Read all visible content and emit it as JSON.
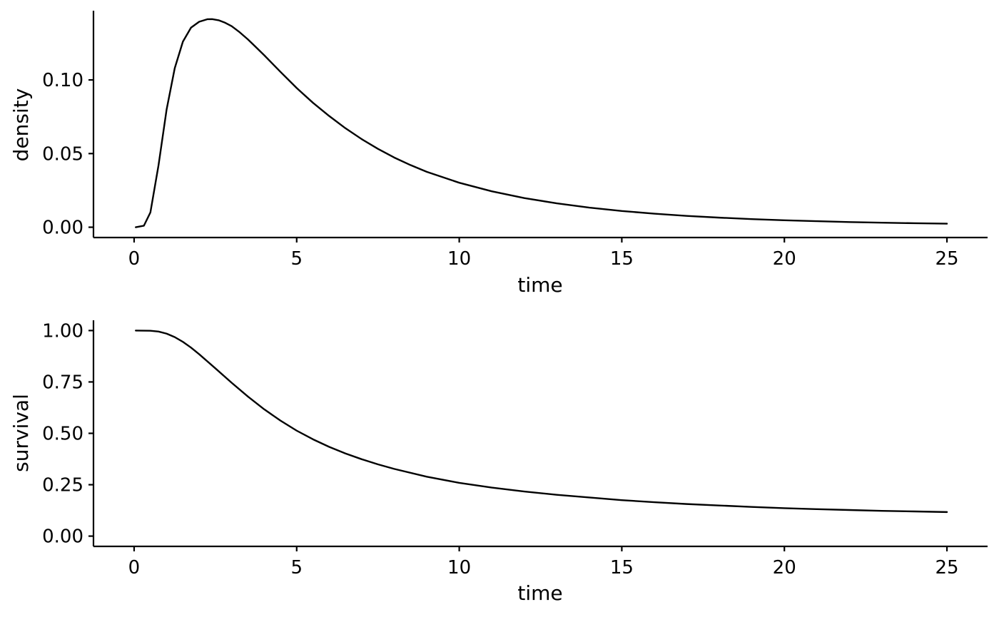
{
  "chart_data": [
    {
      "type": "line",
      "xlabel": "time",
      "ylabel": "density",
      "xticks": [
        0,
        5,
        10,
        15,
        20,
        25
      ],
      "yticks": [
        0.0,
        0.05,
        0.1
      ],
      "ytick_labels": [
        "0.00",
        "0.05",
        "0.10"
      ],
      "xlim": [
        -1.25,
        26.25
      ],
      "ylim": [
        -0.007,
        0.147
      ],
      "line_color": "#000000",
      "series": [
        {
          "x": [
            0.05,
            0.3,
            0.5,
            0.75,
            1.0,
            1.25,
            1.5,
            1.75,
            2.0,
            2.25,
            2.4,
            2.6,
            2.8,
            3.0,
            3.25,
            3.5,
            3.75,
            4.0,
            4.5,
            5.0,
            5.5,
            6.0,
            6.5,
            7.0,
            7.5,
            8.0,
            8.5,
            9.0,
            10.0,
            11.0,
            12.0,
            13.0,
            14.0,
            15.0,
            16.0,
            17.0,
            18.0,
            19.0,
            20.0,
            21.0,
            22.0,
            23.0,
            24.0,
            25.0
          ],
          "y": [
            0.0,
            0.001,
            0.01,
            0.042,
            0.08,
            0.108,
            0.126,
            0.1355,
            0.1395,
            0.1412,
            0.1413,
            0.1405,
            0.1388,
            0.1365,
            0.1323,
            0.1275,
            0.1222,
            0.1168,
            0.1055,
            0.0945,
            0.0845,
            0.0755,
            0.0672,
            0.0598,
            0.0532,
            0.0473,
            0.0422,
            0.0376,
            0.0302,
            0.0244,
            0.0198,
            0.0162,
            0.0133,
            0.011,
            0.0092,
            0.0077,
            0.0065,
            0.0055,
            0.0047,
            0.0041,
            0.0035,
            0.0031,
            0.0027,
            0.0024
          ]
        }
      ]
    },
    {
      "type": "line",
      "xlabel": "time",
      "ylabel": "survival",
      "xticks": [
        0,
        5,
        10,
        15,
        20,
        25
      ],
      "yticks": [
        0.0,
        0.25,
        0.5,
        0.75,
        1.0
      ],
      "ytick_labels": [
        "0.00",
        "0.25",
        "0.50",
        "0.75",
        "1.00"
      ],
      "xlim": [
        -1.25,
        26.25
      ],
      "ylim": [
        -0.05,
        1.05
      ],
      "line_color": "#000000",
      "series": [
        {
          "x": [
            0.05,
            0.5,
            0.75,
            1.0,
            1.25,
            1.5,
            1.75,
            2.0,
            2.5,
            3.0,
            3.5,
            4.0,
            4.5,
            5.0,
            5.5,
            6.0,
            6.5,
            7.0,
            7.5,
            8.0,
            9.0,
            10.0,
            11.0,
            12.0,
            13.0,
            14.0,
            15.0,
            16.0,
            17.0,
            18.0,
            19.0,
            20.0,
            21.0,
            22.0,
            23.0,
            24.0,
            25.0
          ],
          "y": [
            1.0,
            0.999,
            0.995,
            0.985,
            0.968,
            0.945,
            0.917,
            0.885,
            0.816,
            0.746,
            0.679,
            0.617,
            0.562,
            0.513,
            0.471,
            0.434,
            0.402,
            0.374,
            0.349,
            0.327,
            0.289,
            0.259,
            0.236,
            0.217,
            0.201,
            0.188,
            0.175,
            0.165,
            0.156,
            0.149,
            0.142,
            0.136,
            0.131,
            0.127,
            0.123,
            0.12,
            0.117
          ]
        }
      ]
    }
  ]
}
